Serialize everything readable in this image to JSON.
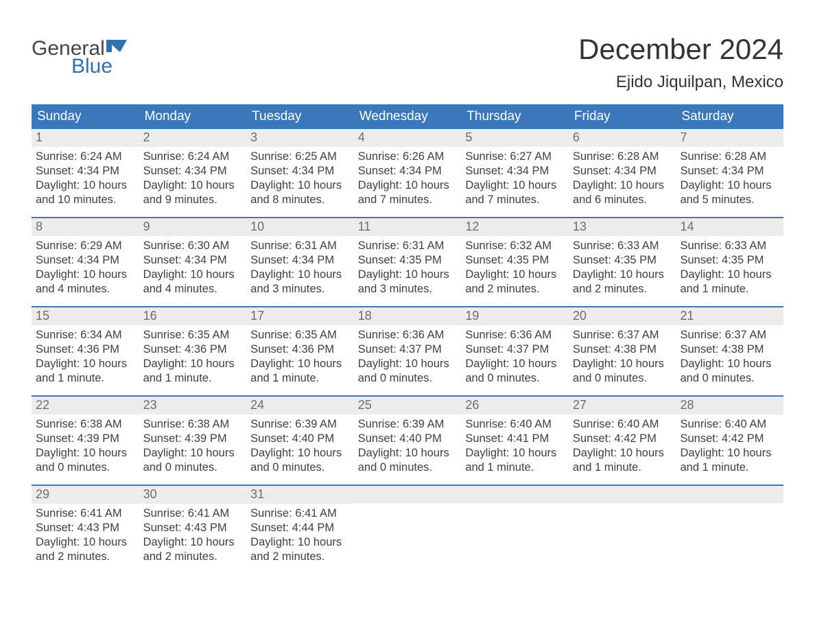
{
  "brand": {
    "part1": "General",
    "part2": "Blue",
    "color1": "#464646",
    "color2": "#2f72b4"
  },
  "title": "December 2024",
  "location": "Ejido Jiquilpan, Mexico",
  "colors": {
    "header_bg": "#3a78bb",
    "header_text": "#ffffff",
    "week_border": "#3a78bb",
    "daynum_bg": "#ececec",
    "daynum_text": "#6d6d6d",
    "body_text": "#404040",
    "page_bg": "#ffffff"
  },
  "typography": {
    "title_fontsize": 42,
    "location_fontsize": 24,
    "header_fontsize": 19,
    "daynum_fontsize": 18,
    "body_fontsize": 16.5
  },
  "day_names": [
    "Sunday",
    "Monday",
    "Tuesday",
    "Wednesday",
    "Thursday",
    "Friday",
    "Saturday"
  ],
  "weeks": [
    [
      {
        "n": "1",
        "sunrise": "Sunrise: 6:24 AM",
        "sunset": "Sunset: 4:34 PM",
        "d1": "Daylight: 10 hours",
        "d2": "and 10 minutes."
      },
      {
        "n": "2",
        "sunrise": "Sunrise: 6:24 AM",
        "sunset": "Sunset: 4:34 PM",
        "d1": "Daylight: 10 hours",
        "d2": "and 9 minutes."
      },
      {
        "n": "3",
        "sunrise": "Sunrise: 6:25 AM",
        "sunset": "Sunset: 4:34 PM",
        "d1": "Daylight: 10 hours",
        "d2": "and 8 minutes."
      },
      {
        "n": "4",
        "sunrise": "Sunrise: 6:26 AM",
        "sunset": "Sunset: 4:34 PM",
        "d1": "Daylight: 10 hours",
        "d2": "and 7 minutes."
      },
      {
        "n": "5",
        "sunrise": "Sunrise: 6:27 AM",
        "sunset": "Sunset: 4:34 PM",
        "d1": "Daylight: 10 hours",
        "d2": "and 7 minutes."
      },
      {
        "n": "6",
        "sunrise": "Sunrise: 6:28 AM",
        "sunset": "Sunset: 4:34 PM",
        "d1": "Daylight: 10 hours",
        "d2": "and 6 minutes."
      },
      {
        "n": "7",
        "sunrise": "Sunrise: 6:28 AM",
        "sunset": "Sunset: 4:34 PM",
        "d1": "Daylight: 10 hours",
        "d2": "and 5 minutes."
      }
    ],
    [
      {
        "n": "8",
        "sunrise": "Sunrise: 6:29 AM",
        "sunset": "Sunset: 4:34 PM",
        "d1": "Daylight: 10 hours",
        "d2": "and 4 minutes."
      },
      {
        "n": "9",
        "sunrise": "Sunrise: 6:30 AM",
        "sunset": "Sunset: 4:34 PM",
        "d1": "Daylight: 10 hours",
        "d2": "and 4 minutes."
      },
      {
        "n": "10",
        "sunrise": "Sunrise: 6:31 AM",
        "sunset": "Sunset: 4:34 PM",
        "d1": "Daylight: 10 hours",
        "d2": "and 3 minutes."
      },
      {
        "n": "11",
        "sunrise": "Sunrise: 6:31 AM",
        "sunset": "Sunset: 4:35 PM",
        "d1": "Daylight: 10 hours",
        "d2": "and 3 minutes."
      },
      {
        "n": "12",
        "sunrise": "Sunrise: 6:32 AM",
        "sunset": "Sunset: 4:35 PM",
        "d1": "Daylight: 10 hours",
        "d2": "and 2 minutes."
      },
      {
        "n": "13",
        "sunrise": "Sunrise: 6:33 AM",
        "sunset": "Sunset: 4:35 PM",
        "d1": "Daylight: 10 hours",
        "d2": "and 2 minutes."
      },
      {
        "n": "14",
        "sunrise": "Sunrise: 6:33 AM",
        "sunset": "Sunset: 4:35 PM",
        "d1": "Daylight: 10 hours",
        "d2": "and 1 minute."
      }
    ],
    [
      {
        "n": "15",
        "sunrise": "Sunrise: 6:34 AM",
        "sunset": "Sunset: 4:36 PM",
        "d1": "Daylight: 10 hours",
        "d2": "and 1 minute."
      },
      {
        "n": "16",
        "sunrise": "Sunrise: 6:35 AM",
        "sunset": "Sunset: 4:36 PM",
        "d1": "Daylight: 10 hours",
        "d2": "and 1 minute."
      },
      {
        "n": "17",
        "sunrise": "Sunrise: 6:35 AM",
        "sunset": "Sunset: 4:36 PM",
        "d1": "Daylight: 10 hours",
        "d2": "and 1 minute."
      },
      {
        "n": "18",
        "sunrise": "Sunrise: 6:36 AM",
        "sunset": "Sunset: 4:37 PM",
        "d1": "Daylight: 10 hours",
        "d2": "and 0 minutes."
      },
      {
        "n": "19",
        "sunrise": "Sunrise: 6:36 AM",
        "sunset": "Sunset: 4:37 PM",
        "d1": "Daylight: 10 hours",
        "d2": "and 0 minutes."
      },
      {
        "n": "20",
        "sunrise": "Sunrise: 6:37 AM",
        "sunset": "Sunset: 4:38 PM",
        "d1": "Daylight: 10 hours",
        "d2": "and 0 minutes."
      },
      {
        "n": "21",
        "sunrise": "Sunrise: 6:37 AM",
        "sunset": "Sunset: 4:38 PM",
        "d1": "Daylight: 10 hours",
        "d2": "and 0 minutes."
      }
    ],
    [
      {
        "n": "22",
        "sunrise": "Sunrise: 6:38 AM",
        "sunset": "Sunset: 4:39 PM",
        "d1": "Daylight: 10 hours",
        "d2": "and 0 minutes."
      },
      {
        "n": "23",
        "sunrise": "Sunrise: 6:38 AM",
        "sunset": "Sunset: 4:39 PM",
        "d1": "Daylight: 10 hours",
        "d2": "and 0 minutes."
      },
      {
        "n": "24",
        "sunrise": "Sunrise: 6:39 AM",
        "sunset": "Sunset: 4:40 PM",
        "d1": "Daylight: 10 hours",
        "d2": "and 0 minutes."
      },
      {
        "n": "25",
        "sunrise": "Sunrise: 6:39 AM",
        "sunset": "Sunset: 4:40 PM",
        "d1": "Daylight: 10 hours",
        "d2": "and 0 minutes."
      },
      {
        "n": "26",
        "sunrise": "Sunrise: 6:40 AM",
        "sunset": "Sunset: 4:41 PM",
        "d1": "Daylight: 10 hours",
        "d2": "and 1 minute."
      },
      {
        "n": "27",
        "sunrise": "Sunrise: 6:40 AM",
        "sunset": "Sunset: 4:42 PM",
        "d1": "Daylight: 10 hours",
        "d2": "and 1 minute."
      },
      {
        "n": "28",
        "sunrise": "Sunrise: 6:40 AM",
        "sunset": "Sunset: 4:42 PM",
        "d1": "Daylight: 10 hours",
        "d2": "and 1 minute."
      }
    ],
    [
      {
        "n": "29",
        "sunrise": "Sunrise: 6:41 AM",
        "sunset": "Sunset: 4:43 PM",
        "d1": "Daylight: 10 hours",
        "d2": "and 2 minutes."
      },
      {
        "n": "30",
        "sunrise": "Sunrise: 6:41 AM",
        "sunset": "Sunset: 4:43 PM",
        "d1": "Daylight: 10 hours",
        "d2": "and 2 minutes."
      },
      {
        "n": "31",
        "sunrise": "Sunrise: 6:41 AM",
        "sunset": "Sunset: 4:44 PM",
        "d1": "Daylight: 10 hours",
        "d2": "and 2 minutes."
      },
      null,
      null,
      null,
      null
    ]
  ]
}
